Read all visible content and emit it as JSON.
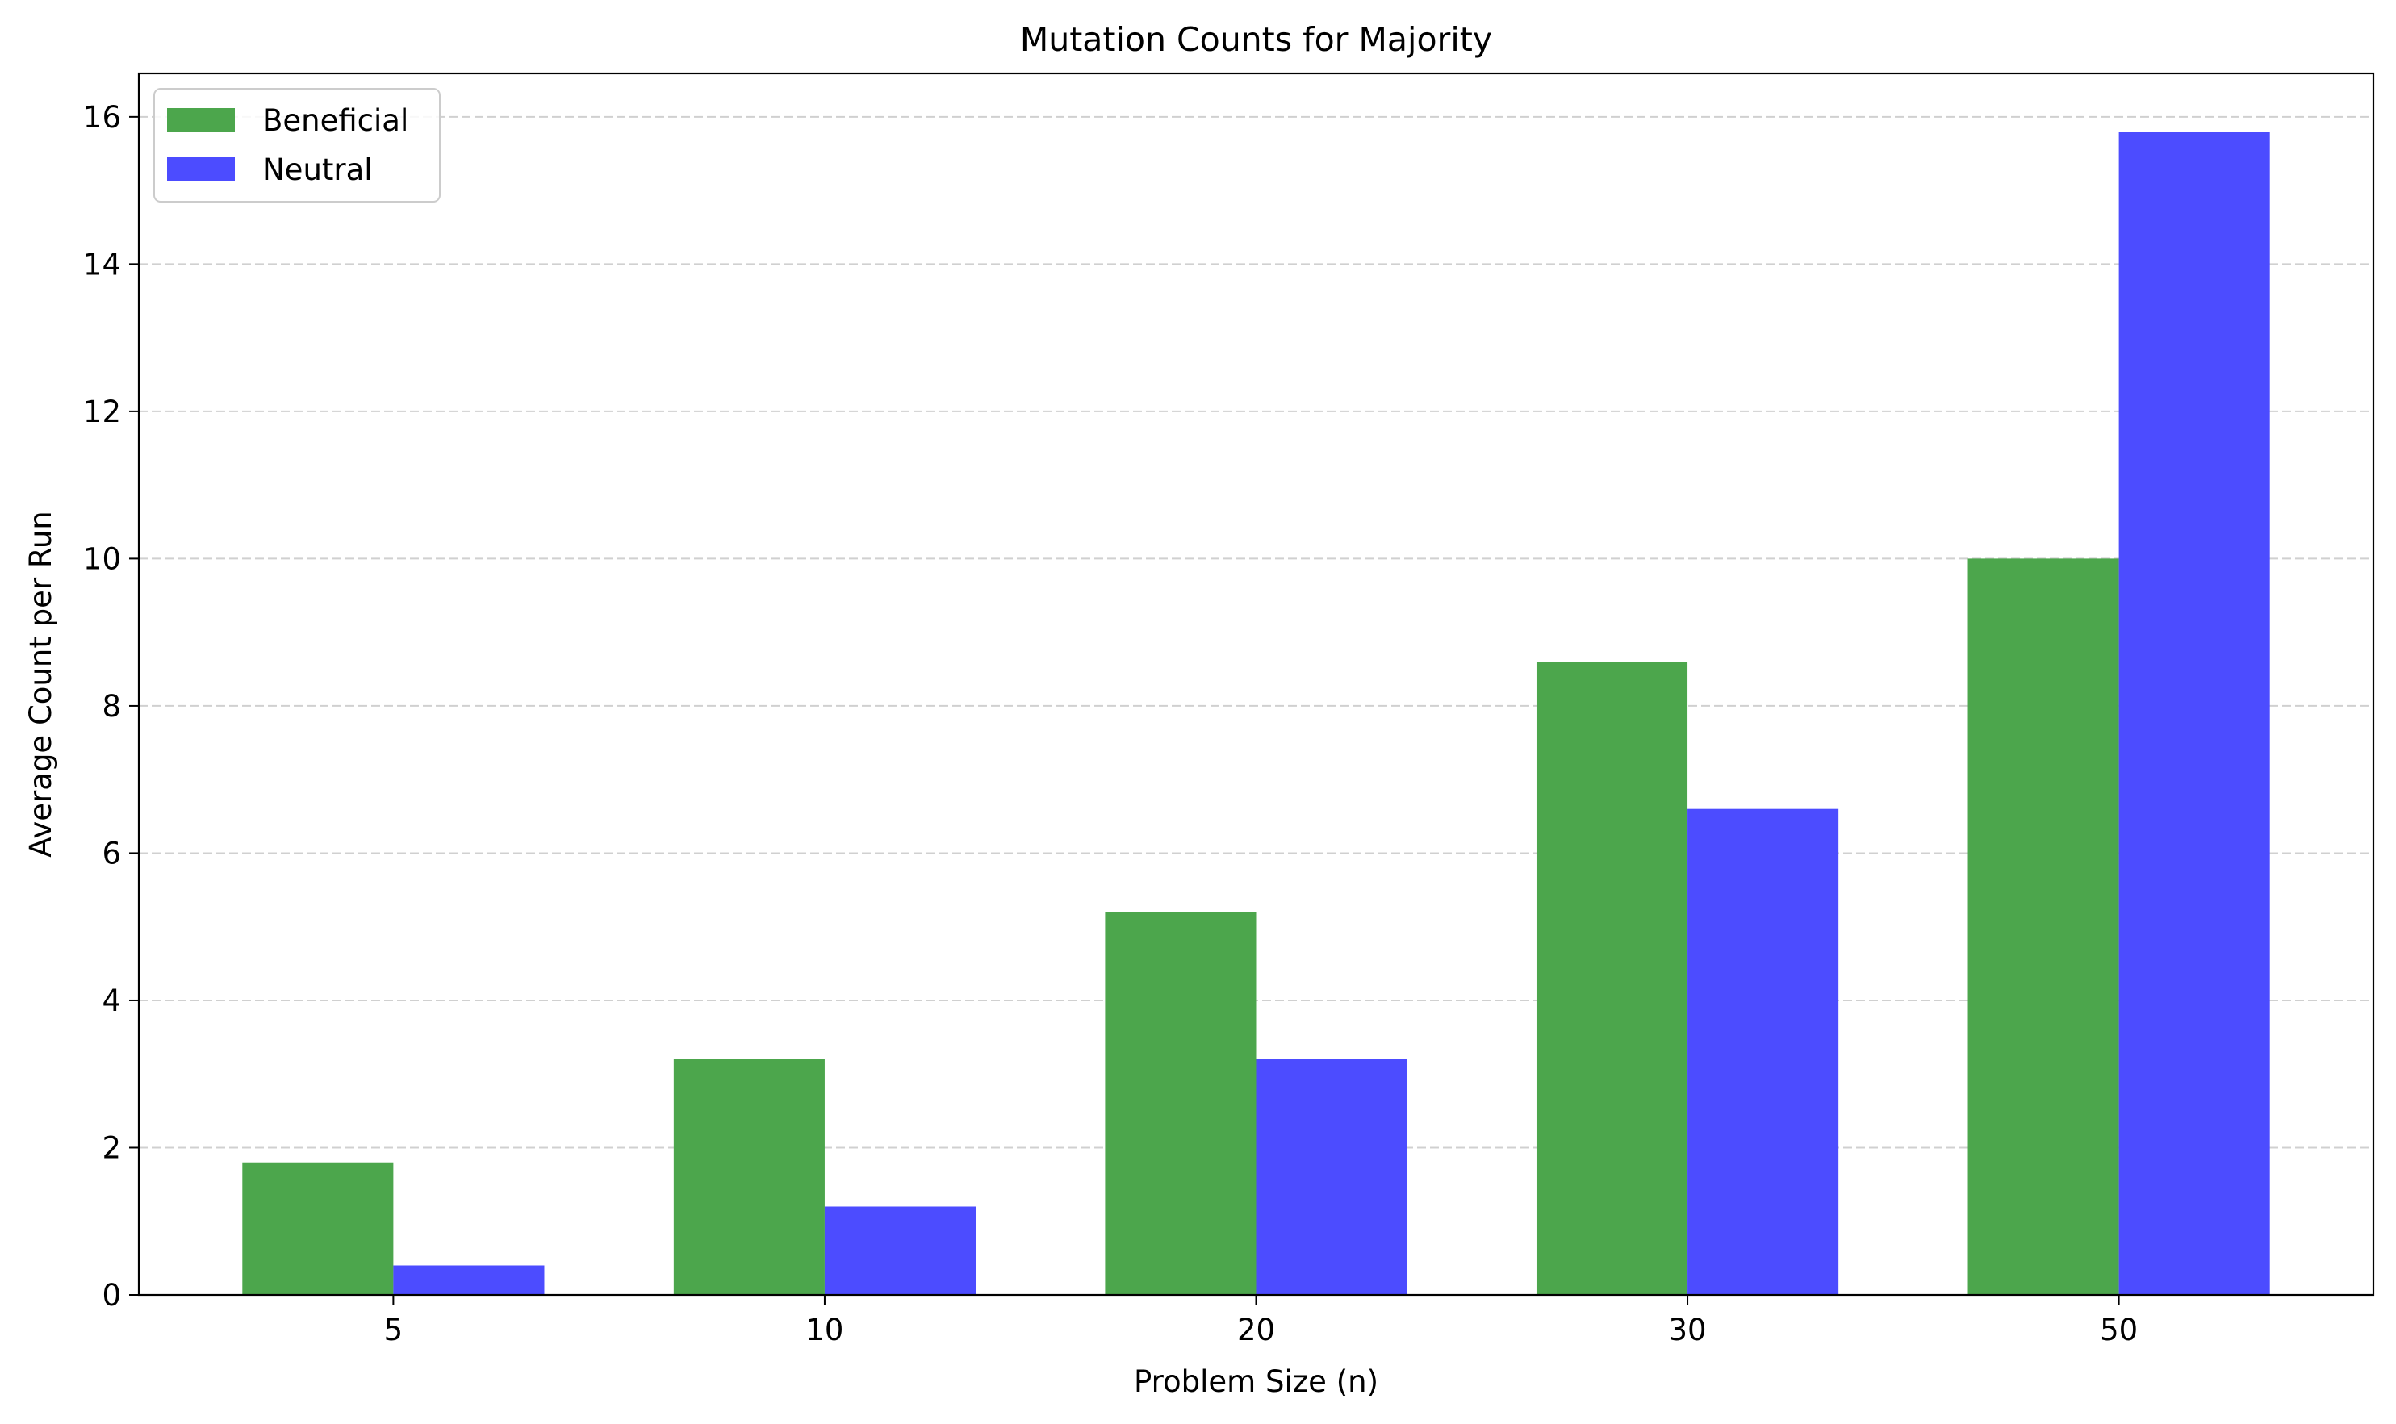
{
  "chart_data": {
    "type": "bar",
    "title": "Mutation Counts for Majority",
    "xlabel": "Problem Size (n)",
    "ylabel": "Average Count per Run",
    "categories": [
      "5",
      "10",
      "20",
      "30",
      "50"
    ],
    "series": [
      {
        "name": "Beneficial",
        "values": [
          1.8,
          3.2,
          5.2,
          8.6,
          10.0
        ],
        "color": "#4ca64c"
      },
      {
        "name": "Neutral",
        "values": [
          0.4,
          1.2,
          3.2,
          6.6,
          15.8
        ],
        "color": "#4c4cff"
      }
    ],
    "ylim": [
      0,
      16.59
    ],
    "yticks": [
      0,
      2,
      4,
      6,
      8,
      10,
      12,
      14,
      16
    ],
    "ytick_labels": [
      "0",
      "2",
      "4",
      "6",
      "8",
      "10",
      "12",
      "14",
      "16"
    ],
    "grid": "y-dashed",
    "legend": "top-left"
  }
}
